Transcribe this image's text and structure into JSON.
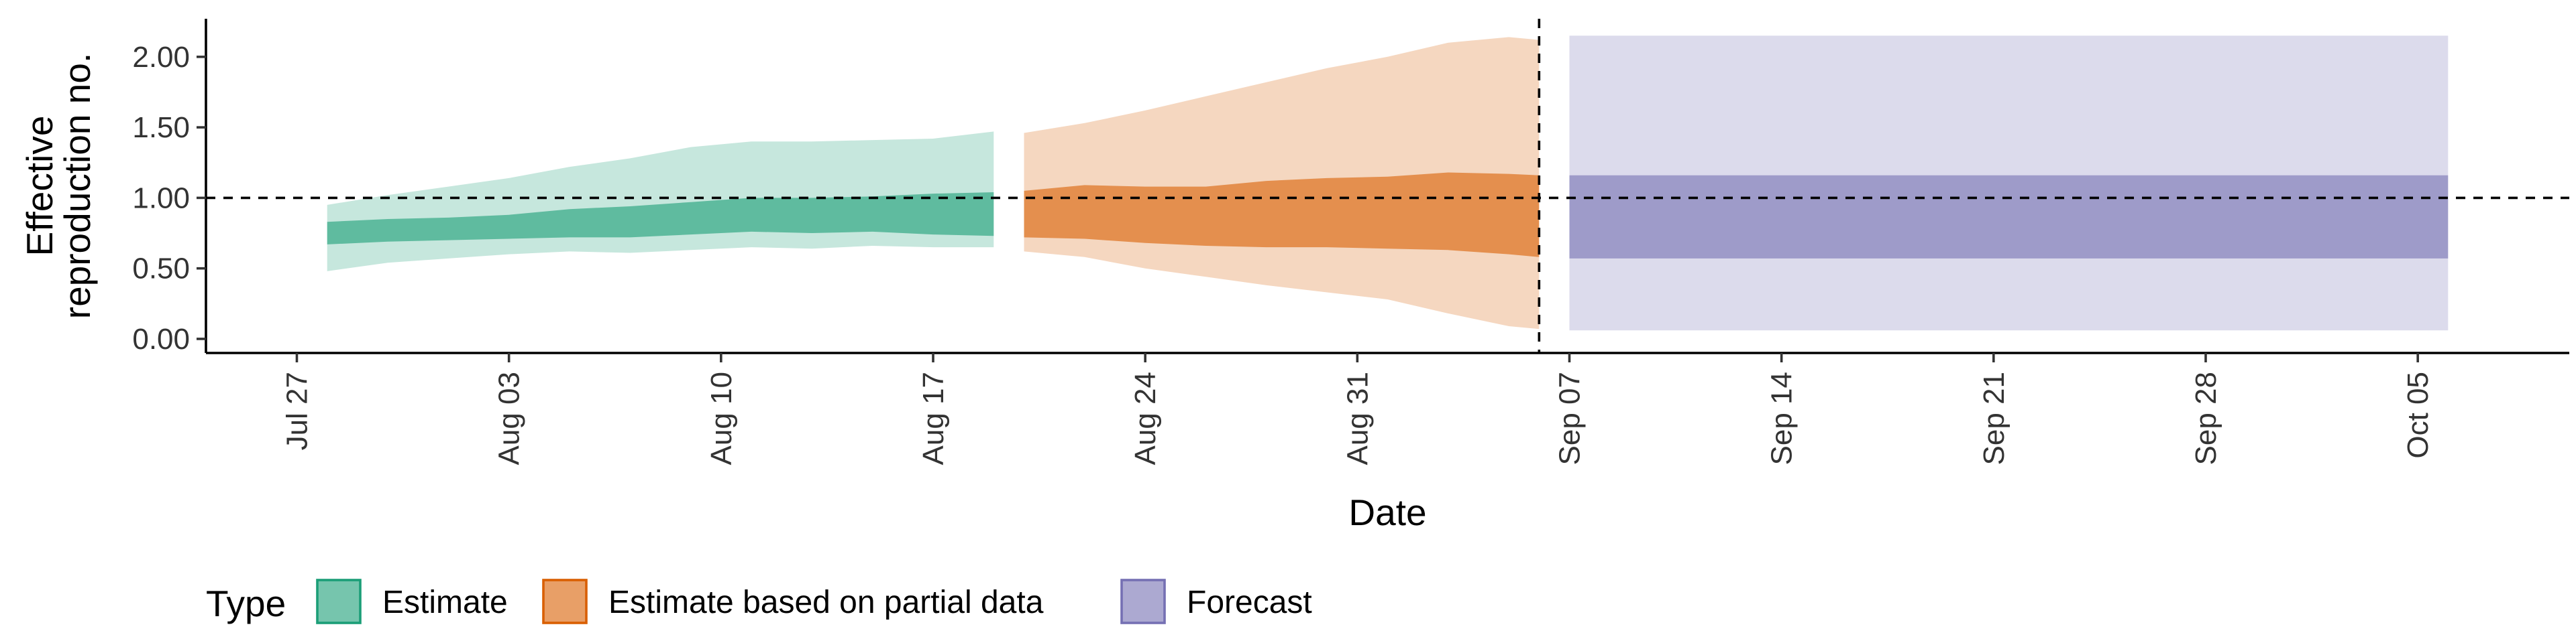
{
  "chart_data": {
    "type": "area",
    "xlabel": "Date",
    "ylabel_lines": [
      "Effective",
      "reproduction no."
    ],
    "x_ticks": [
      "Jul 27",
      "Aug 03",
      "Aug 10",
      "Aug 17",
      "Aug 24",
      "Aug 31",
      "Sep 07",
      "Sep 14",
      "Sep 21",
      "Sep 28",
      "Oct 05"
    ],
    "x_range": [
      "2020-07-24",
      "2020-10-10"
    ],
    "y_ticks": [
      "0.00",
      "0.50",
      "1.00",
      "1.50",
      "2.00"
    ],
    "ylim": [
      -0.1,
      2.27
    ],
    "reference_line_y": 1.0,
    "reference_line_x": "2020-09-06",
    "legend": {
      "title": "Type",
      "position": "bottom",
      "items": [
        "Estimate",
        "Estimate based on partial data",
        "Forecast"
      ]
    },
    "colors": {
      "Estimate": "#1b9e77",
      "Estimate based on partial data": "#d95f02",
      "Forecast": "#7570b3"
    },
    "series": [
      {
        "name": "Estimate",
        "points": [
          {
            "date": "2020-07-28",
            "lower90": 0.48,
            "lower50": 0.67,
            "upper50": 0.83,
            "upper90": 0.95
          },
          {
            "date": "2020-07-30",
            "lower90": 0.54,
            "lower50": 0.69,
            "upper50": 0.85,
            "upper90": 1.02
          },
          {
            "date": "2020-08-01",
            "lower90": 0.57,
            "lower50": 0.7,
            "upper50": 0.86,
            "upper90": 1.08
          },
          {
            "date": "2020-08-03",
            "lower90": 0.6,
            "lower50": 0.71,
            "upper50": 0.88,
            "upper90": 1.14
          },
          {
            "date": "2020-08-05",
            "lower90": 0.62,
            "lower50": 0.72,
            "upper50": 0.92,
            "upper90": 1.22
          },
          {
            "date": "2020-08-07",
            "lower90": 0.61,
            "lower50": 0.72,
            "upper50": 0.94,
            "upper90": 1.28
          },
          {
            "date": "2020-08-09",
            "lower90": 0.63,
            "lower50": 0.74,
            "upper50": 0.97,
            "upper90": 1.36
          },
          {
            "date": "2020-08-11",
            "lower90": 0.65,
            "lower50": 0.76,
            "upper50": 1.0,
            "upper90": 1.4
          },
          {
            "date": "2020-08-13",
            "lower90": 0.64,
            "lower50": 0.75,
            "upper50": 1.0,
            "upper90": 1.4
          },
          {
            "date": "2020-08-15",
            "lower90": 0.66,
            "lower50": 0.76,
            "upper50": 1.01,
            "upper90": 1.41
          },
          {
            "date": "2020-08-17",
            "lower90": 0.65,
            "lower50": 0.74,
            "upper50": 1.03,
            "upper90": 1.42
          },
          {
            "date": "2020-08-19",
            "lower90": 0.65,
            "lower50": 0.73,
            "upper50": 1.04,
            "upper90": 1.47
          }
        ]
      },
      {
        "name": "Estimate based on partial data",
        "points": [
          {
            "date": "2020-08-20",
            "lower90": 0.62,
            "lower50": 0.72,
            "upper50": 1.05,
            "upper90": 1.46
          },
          {
            "date": "2020-08-22",
            "lower90": 0.58,
            "lower50": 0.71,
            "upper50": 1.09,
            "upper90": 1.53
          },
          {
            "date": "2020-08-24",
            "lower90": 0.5,
            "lower50": 0.68,
            "upper50": 1.08,
            "upper90": 1.62
          },
          {
            "date": "2020-08-26",
            "lower90": 0.44,
            "lower50": 0.66,
            "upper50": 1.08,
            "upper90": 1.72
          },
          {
            "date": "2020-08-28",
            "lower90": 0.38,
            "lower50": 0.65,
            "upper50": 1.12,
            "upper90": 1.82
          },
          {
            "date": "2020-08-30",
            "lower90": 0.33,
            "lower50": 0.65,
            "upper50": 1.14,
            "upper90": 1.92
          },
          {
            "date": "2020-09-01",
            "lower90": 0.28,
            "lower50": 0.64,
            "upper50": 1.15,
            "upper90": 2.0
          },
          {
            "date": "2020-09-03",
            "lower90": 0.18,
            "lower50": 0.63,
            "upper50": 1.18,
            "upper90": 2.1
          },
          {
            "date": "2020-09-05",
            "lower90": 0.09,
            "lower50": 0.6,
            "upper50": 1.17,
            "upper90": 2.14
          },
          {
            "date": "2020-09-06",
            "lower90": 0.07,
            "lower50": 0.58,
            "upper50": 1.16,
            "upper90": 2.12
          }
        ]
      },
      {
        "name": "Forecast",
        "points": [
          {
            "date": "2020-09-07",
            "lower90": 0.06,
            "lower50": 0.57,
            "upper50": 1.16,
            "upper90": 2.15
          },
          {
            "date": "2020-10-06",
            "lower90": 0.06,
            "lower50": 0.57,
            "upper50": 1.16,
            "upper90": 2.15
          }
        ]
      }
    ]
  }
}
